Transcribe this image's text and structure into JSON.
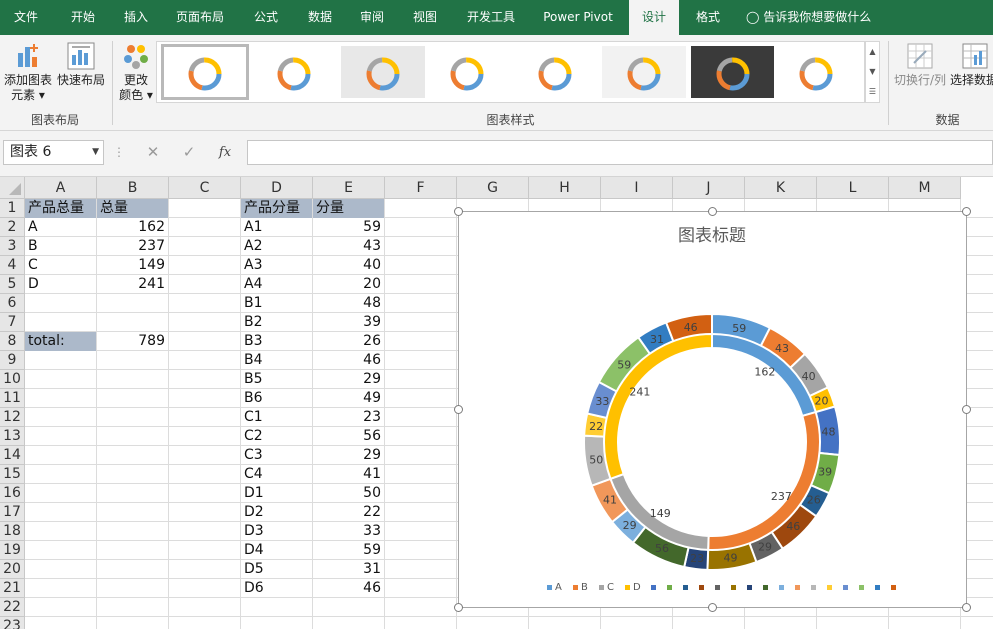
{
  "ribbon_tabs": [
    "文件",
    "开始",
    "插入",
    "页面布局",
    "公式",
    "数据",
    "审阅",
    "视图",
    "开发工具",
    "Power Pivot",
    "设计",
    "格式"
  ],
  "tell_me": "告诉我你想要做什么",
  "ribbon": {
    "add_element": [
      "添加图表",
      "元素 ▾"
    ],
    "quick_layout": "快速布局",
    "change_color": [
      "更改",
      "颜色 ▾"
    ],
    "switch_row_col": "切换行/列",
    "select_data": "选择数据",
    "groups": {
      "layout": "图表布局",
      "styles": "图表样式",
      "data": "数据"
    }
  },
  "name_box": "图表 6",
  "columns": [
    "A",
    "B",
    "C",
    "D",
    "E",
    "F",
    "G",
    "H",
    "I",
    "J",
    "K",
    "L",
    "M"
  ],
  "rows": [
    "1",
    "2",
    "3",
    "4",
    "5",
    "6",
    "7",
    "8",
    "9",
    "10",
    "11",
    "12",
    "13",
    "14",
    "15",
    "16",
    "17",
    "18",
    "19",
    "20",
    "21",
    "22",
    "23"
  ],
  "table_total": {
    "headers": [
      "产品总量",
      "总量"
    ],
    "rows": [
      [
        "A",
        "162"
      ],
      [
        "B",
        "237"
      ],
      [
        "C",
        "149"
      ],
      [
        "D",
        "241"
      ]
    ],
    "total_label": "total:",
    "total_value": "789"
  },
  "table_part": {
    "headers": [
      "产品分量",
      "分量"
    ],
    "rows": [
      [
        "A1",
        "59"
      ],
      [
        "A2",
        "43"
      ],
      [
        "A3",
        "40"
      ],
      [
        "A4",
        "20"
      ],
      [
        "B1",
        "48"
      ],
      [
        "B2",
        "39"
      ],
      [
        "B3",
        "26"
      ],
      [
        "B4",
        "46"
      ],
      [
        "B5",
        "29"
      ],
      [
        "B6",
        "49"
      ],
      [
        "C1",
        "23"
      ],
      [
        "C2",
        "56"
      ],
      [
        "C3",
        "29"
      ],
      [
        "C4",
        "41"
      ],
      [
        "D1",
        "50"
      ],
      [
        "D2",
        "22"
      ],
      [
        "D3",
        "33"
      ],
      [
        "D4",
        "59"
      ],
      [
        "D5",
        "31"
      ],
      [
        "D6",
        "46"
      ]
    ]
  },
  "chart_data": {
    "type": "pie",
    "title": "图表标题",
    "inner": {
      "categories": [
        "A",
        "B",
        "C",
        "D"
      ],
      "values": [
        162,
        237,
        149,
        241
      ],
      "colors": [
        "#5b9bd5",
        "#ed7d31",
        "#a5a5a5",
        "#ffc000"
      ]
    },
    "outer": {
      "categories": [
        "A1",
        "A2",
        "A3",
        "A4",
        "B1",
        "B2",
        "B3",
        "B4",
        "B5",
        "B6",
        "C1",
        "C2",
        "C3",
        "C4",
        "D1",
        "D2",
        "D3",
        "D4",
        "D5",
        "D6"
      ],
      "values": [
        59,
        43,
        40,
        20,
        48,
        39,
        26,
        46,
        29,
        49,
        23,
        56,
        29,
        41,
        50,
        22,
        33,
        59,
        31,
        46
      ],
      "colors": [
        "#5b9bd5",
        "#ed7d31",
        "#a5a5a5",
        "#ffc000",
        "#4472c4",
        "#70ad47",
        "#255e91",
        "#9e480e",
        "#636363",
        "#997300",
        "#264478",
        "#43682b",
        "#7cafdd",
        "#f1975a",
        "#b7b7b7",
        "#ffcd33",
        "#698ed0",
        "#8cc168",
        "#327dc2",
        "#d26012"
      ]
    },
    "legend": {
      "placement": "bottom",
      "entries": [
        "A",
        "B",
        "C",
        "D",
        "",
        "",
        "",
        "",
        "",
        "",
        "",
        "",
        "",
        "",
        "",
        "",
        "",
        "",
        "",
        ""
      ]
    }
  }
}
